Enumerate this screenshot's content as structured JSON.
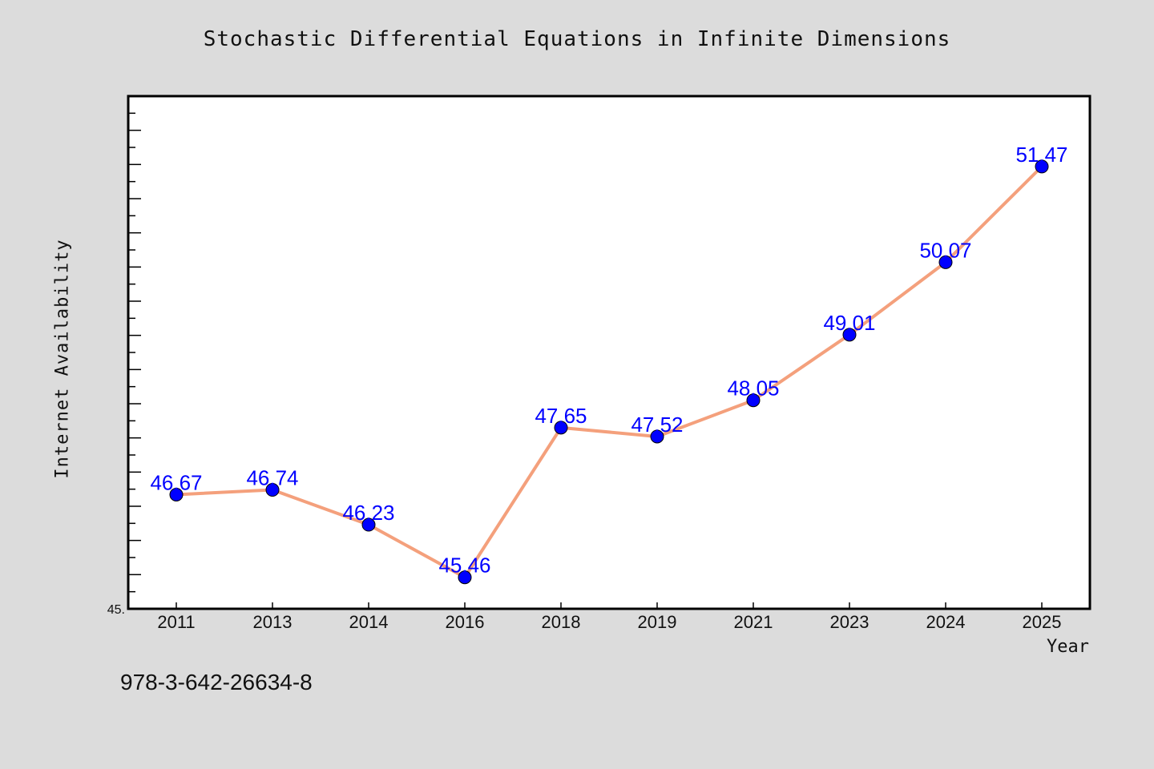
{
  "chart_data": {
    "type": "line",
    "title": "Stochastic Differential Equations in Infinite Dimensions",
    "xlabel": "Year",
    "ylabel": "Internet Availability",
    "categories": [
      "2011",
      "2013",
      "2014",
      "2016",
      "2018",
      "2019",
      "2021",
      "2023",
      "2024",
      "2025"
    ],
    "series": [
      {
        "values": [
          46.67,
          46.74,
          46.23,
          45.46,
          47.65,
          47.52,
          48.05,
          49.01,
          50.07,
          51.47
        ],
        "labels": [
          "46.67",
          "46.74",
          "46.23",
          "45.46",
          "47.65",
          "47.52",
          "48.05",
          "49.01",
          "50.07",
          "51.47"
        ]
      }
    ],
    "ylim": [
      45.0,
      52.5
    ],
    "y_tick_label": "45.",
    "grid": false,
    "legend": "none",
    "colors": {
      "line": "#f4a07c",
      "marker": "#0000ff",
      "label": "#0000ff",
      "plot_background": "#ffffff",
      "figure_background": "#dcdcdc"
    }
  },
  "footnote": "978-3-642-26634-8"
}
